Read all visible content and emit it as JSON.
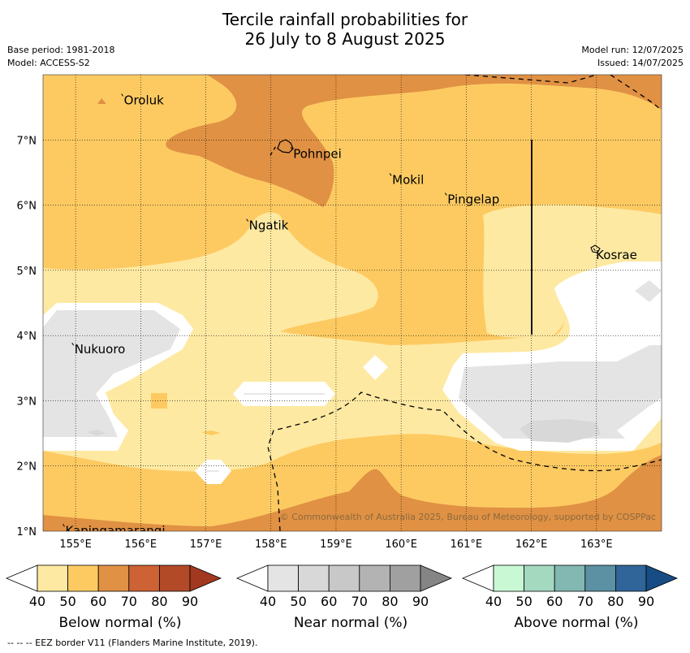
{
  "title": {
    "line1": "Tercile rainfall probabilities for",
    "line2": "26 July to 8 August 2025"
  },
  "meta_left": {
    "base_period": "Base period: 1981-2018",
    "model": "Model: ACCESS-S2"
  },
  "meta_right": {
    "model_run": "Model run: 12/07/2025",
    "issued": "Issued: 14/07/2025"
  },
  "map": {
    "lon_range": [
      154.5,
      164.0
    ],
    "lat_range": [
      1.0,
      8.0
    ],
    "x_ticks": [
      "155°E",
      "156°E",
      "157°E",
      "158°E",
      "159°E",
      "160°E",
      "161°E",
      "162°E",
      "163°E"
    ],
    "y_ticks": [
      "1°N",
      "2°N",
      "3°N",
      "4°N",
      "5°N",
      "6°N",
      "7°N"
    ],
    "places": [
      {
        "name": "Oroluk",
        "lon": 155.73,
        "lat": 7.67
      },
      {
        "name": "Pohnpei",
        "lon": 158.33,
        "lat": 6.85
      },
      {
        "name": "Mokil",
        "lon": 159.85,
        "lat": 6.45
      },
      {
        "name": "Pingelap",
        "lon": 160.7,
        "lat": 6.15
      },
      {
        "name": "Ngatik",
        "lon": 157.65,
        "lat": 5.75
      },
      {
        "name": "Kosrae",
        "lon": 162.98,
        "lat": 5.3
      },
      {
        "name": "Nukuoro",
        "lon": 154.97,
        "lat": 3.85
      },
      {
        "name": "Kapingamarangi",
        "lon": 154.83,
        "lat": 1.07
      }
    ],
    "credit": "© Commonwealth of Australia 2025, Bureau of Meteorology, supported by COSPPac",
    "ocean_color": "#ffffff"
  },
  "legends": [
    {
      "name": "below",
      "label": "Below normal (%)",
      "ticks": [
        "40",
        "50",
        "60",
        "70",
        "80",
        "90"
      ],
      "colors": [
        "#fee9a2",
        "#fdca62",
        "#e09143",
        "#cd6234",
        "#b24a28",
        "#a23820"
      ]
    },
    {
      "name": "near",
      "label": "Near normal (%)",
      "ticks": [
        "40",
        "50",
        "60",
        "70",
        "80",
        "90"
      ],
      "colors": [
        "#e4e4e4",
        "#d8d8d8",
        "#c8c8c8",
        "#b3b3b3",
        "#a0a0a0",
        "#858585"
      ]
    },
    {
      "name": "above",
      "label": "Above normal (%)",
      "ticks": [
        "40",
        "50",
        "60",
        "70",
        "80",
        "90"
      ],
      "colors": [
        "#c9f9d4",
        "#a4d9c0",
        "#82b7b2",
        "#5b91a3",
        "#2f6598",
        "#174d84"
      ]
    }
  ],
  "footer": "--  --  -- EEZ border V11 (Flanders Marine Institute, 2019)."
}
